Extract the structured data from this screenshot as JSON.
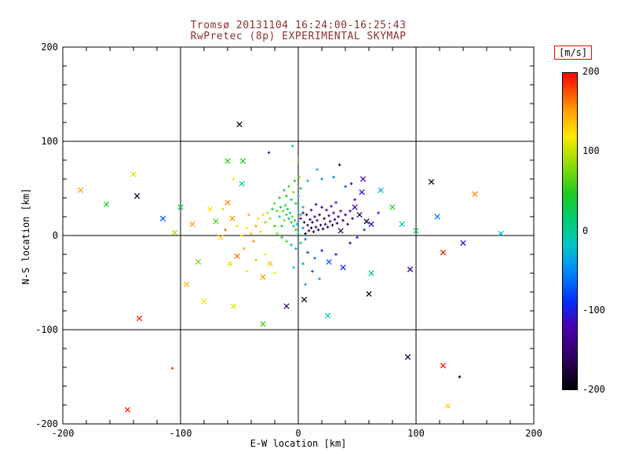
{
  "colors": {
    "title": "#8b3030",
    "axis": "#000000",
    "background": "#ffffff",
    "colorbar_box_border": "#ff0000"
  },
  "chart_data": {
    "type": "scatter",
    "title": "Tromsø 20131104 16:24:00-16:25:43",
    "subtitle": "RwPretec (8p) EXPERIMENTAL SKYMAP",
    "xlabel": "E-W location [km]",
    "ylabel": "N-S location [km]",
    "xlim": [
      -200,
      200
    ],
    "ylim": [
      -200,
      200
    ],
    "x_ticks": [
      -200,
      -100,
      0,
      100,
      200
    ],
    "y_ticks": [
      -200,
      -100,
      0,
      100,
      200
    ],
    "minor_tick_step": 20,
    "grid": true,
    "legend_position": "none",
    "colorbar": {
      "label": "[m/s]",
      "min": -200,
      "max": 200,
      "ticks": [
        200,
        100,
        0,
        -100,
        -200
      ],
      "stops": [
        {
          "t": 0.0,
          "c": "#000000"
        },
        {
          "t": 0.1,
          "c": "#2e0060"
        },
        {
          "t": 0.2,
          "c": "#4b00b0"
        },
        {
          "t": 0.28,
          "c": "#0030ff"
        },
        {
          "t": 0.38,
          "c": "#0090ff"
        },
        {
          "t": 0.46,
          "c": "#00c8c0"
        },
        {
          "t": 0.54,
          "c": "#00cc70"
        },
        {
          "t": 0.62,
          "c": "#20cc20"
        },
        {
          "t": 0.72,
          "c": "#9ade00"
        },
        {
          "t": 0.8,
          "c": "#ffe800"
        },
        {
          "t": 0.88,
          "c": "#ffa000"
        },
        {
          "t": 0.94,
          "c": "#ff5000"
        },
        {
          "t": 1.0,
          "c": "#ff0000"
        }
      ]
    },
    "points_format": [
      "x_km",
      "y_km",
      "velocity_mps",
      "marker(x=cross,d=dot)"
    ],
    "points": [
      [
        -140,
        65,
        110,
        "x"
      ],
      [
        -185,
        48,
        150,
        "x"
      ],
      [
        -163,
        33,
        40,
        "x"
      ],
      [
        -137,
        42,
        -185,
        "x"
      ],
      [
        -50,
        118,
        -190,
        "x"
      ],
      [
        -60,
        79,
        55,
        "x"
      ],
      [
        113,
        57,
        -195,
        "x"
      ],
      [
        150,
        44,
        160,
        "x"
      ],
      [
        172,
        2,
        -30,
        "x"
      ],
      [
        140,
        -8,
        -110,
        "x"
      ],
      [
        123,
        -18,
        195,
        "x"
      ],
      [
        95,
        -36,
        -150,
        "x"
      ],
      [
        -135,
        -88,
        190,
        "x"
      ],
      [
        123,
        -138,
        195,
        "x"
      ],
      [
        137,
        -150,
        -200,
        "d"
      ],
      [
        -145,
        -185,
        190,
        "x"
      ],
      [
        -107,
        -141,
        185,
        "d"
      ],
      [
        127,
        -181,
        130,
        "x"
      ],
      [
        93,
        -129,
        -170,
        "x"
      ],
      [
        60,
        -62,
        -190,
        "x"
      ],
      [
        70,
        48,
        -30,
        "x"
      ],
      [
        55,
        60,
        -120,
        "x"
      ],
      [
        118,
        20,
        -60,
        "x"
      ],
      [
        100,
        5,
        30,
        "x"
      ],
      [
        -95,
        -52,
        140,
        "x"
      ],
      [
        -80,
        -70,
        120,
        "x"
      ],
      [
        -55,
        -75,
        110,
        "x"
      ],
      [
        -30,
        -94,
        60,
        "x"
      ],
      [
        -10,
        -75,
        -150,
        "x"
      ],
      [
        5,
        -68,
        -180,
        "x"
      ],
      [
        25,
        -85,
        -20,
        "x"
      ],
      [
        -60,
        35,
        160,
        "x"
      ],
      [
        -75,
        28,
        120,
        "x"
      ],
      [
        -90,
        12,
        150,
        "x"
      ],
      [
        -105,
        3,
        90,
        "x"
      ],
      [
        -48,
        55,
        0,
        "x"
      ],
      [
        -47,
        79,
        50,
        "x"
      ],
      [
        -25,
        88,
        -100,
        "d"
      ],
      [
        0,
        80,
        70,
        "d"
      ],
      [
        -5,
        95,
        10,
        "d"
      ],
      [
        -55,
        60,
        130,
        "d"
      ],
      [
        35,
        75,
        -170,
        "d"
      ],
      [
        20,
        60,
        -50,
        "d"
      ],
      [
        45,
        55,
        -140,
        "d"
      ],
      [
        -70,
        15,
        60,
        "x"
      ],
      [
        -85,
        -28,
        80,
        "x"
      ],
      [
        62,
        -40,
        20,
        "x"
      ],
      [
        80,
        30,
        50,
        "x"
      ],
      [
        88,
        12,
        -10,
        "x"
      ],
      [
        -100,
        30,
        30,
        "x"
      ],
      [
        -115,
        18,
        -70,
        "x"
      ],
      [
        6,
        2,
        -180,
        "d"
      ],
      [
        9,
        5,
        -165,
        "d"
      ],
      [
        11,
        8,
        -190,
        "d"
      ],
      [
        13,
        4,
        -175,
        "d"
      ],
      [
        15,
        9,
        -155,
        "d"
      ],
      [
        17,
        6,
        -185,
        "d"
      ],
      [
        19,
        11,
        -160,
        "d"
      ],
      [
        21,
        7,
        -195,
        "d"
      ],
      [
        23,
        12,
        -150,
        "d"
      ],
      [
        25,
        9,
        -170,
        "d"
      ],
      [
        27,
        15,
        -140,
        "d"
      ],
      [
        29,
        11,
        -180,
        "d"
      ],
      [
        31,
        17,
        -155,
        "d"
      ],
      [
        33,
        13,
        -165,
        "d"
      ],
      [
        16,
        16,
        -135,
        "d"
      ],
      [
        12,
        14,
        -175,
        "d"
      ],
      [
        8,
        11,
        -160,
        "d"
      ],
      [
        10,
        17,
        -145,
        "d"
      ],
      [
        14,
        20,
        -130,
        "d"
      ],
      [
        18,
        22,
        -150,
        "d"
      ],
      [
        22,
        18,
        -170,
        "d"
      ],
      [
        26,
        21,
        -140,
        "d"
      ],
      [
        30,
        24,
        -125,
        "d"
      ],
      [
        34,
        20,
        -155,
        "d"
      ],
      [
        38,
        16,
        -175,
        "d"
      ],
      [
        36,
        26,
        -135,
        "d"
      ],
      [
        24,
        27,
        -120,
        "d"
      ],
      [
        20,
        30,
        -145,
        "d"
      ],
      [
        28,
        31,
        -130,
        "d"
      ],
      [
        32,
        35,
        -115,
        "d"
      ],
      [
        15,
        33,
        -125,
        "d"
      ],
      [
        11,
        27,
        -140,
        "d"
      ],
      [
        7,
        22,
        -155,
        "d"
      ],
      [
        5,
        14,
        -170,
        "d"
      ],
      [
        4,
        24,
        -135,
        "d"
      ],
      [
        2,
        18,
        -120,
        "d"
      ],
      [
        40,
        22,
        -150,
        "d"
      ],
      [
        44,
        26,
        -130,
        "d"
      ],
      [
        42,
        12,
        -165,
        "d"
      ],
      [
        46,
        18,
        -145,
        "d"
      ],
      [
        36,
        5,
        -160,
        "x"
      ],
      [
        48,
        30,
        -140,
        "x"
      ],
      [
        52,
        22,
        -170,
        "x"
      ],
      [
        58,
        15,
        -190,
        "x"
      ],
      [
        0,
        2,
        10,
        "d"
      ],
      [
        -2,
        6,
        30,
        "d"
      ],
      [
        -4,
        10,
        -15,
        "d"
      ],
      [
        -6,
        14,
        45,
        "d"
      ],
      [
        -8,
        18,
        5,
        "d"
      ],
      [
        -10,
        22,
        60,
        "d"
      ],
      [
        -1,
        12,
        -25,
        "d"
      ],
      [
        -3,
        16,
        20,
        "d"
      ],
      [
        -5,
        20,
        75,
        "d"
      ],
      [
        -7,
        24,
        -5,
        "d"
      ],
      [
        -9,
        28,
        35,
        "d"
      ],
      [
        -11,
        32,
        55,
        "d"
      ],
      [
        0,
        26,
        -20,
        "d"
      ],
      [
        2,
        22,
        15,
        "d"
      ],
      [
        4,
        30,
        -35,
        "d"
      ],
      [
        -13,
        26,
        70,
        "d"
      ],
      [
        -15,
        30,
        25,
        "d"
      ],
      [
        -12,
        16,
        85,
        "d"
      ],
      [
        -14,
        10,
        40,
        "d"
      ],
      [
        -16,
        20,
        -10,
        "d"
      ],
      [
        -18,
        26,
        65,
        "d"
      ],
      [
        -2,
        34,
        30,
        "d"
      ],
      [
        -6,
        38,
        0,
        "d"
      ],
      [
        -10,
        42,
        50,
        "d"
      ],
      [
        -4,
        46,
        80,
        "d"
      ],
      [
        0,
        42,
        -30,
        "d"
      ],
      [
        2,
        50,
        20,
        "d"
      ],
      [
        -8,
        52,
        60,
        "d"
      ],
      [
        -3,
        58,
        35,
        "d"
      ],
      [
        1,
        62,
        90,
        "d"
      ],
      [
        -12,
        48,
        10,
        "d"
      ],
      [
        -16,
        40,
        45,
        "d"
      ],
      [
        -20,
        34,
        70,
        "d"
      ],
      [
        -22,
        28,
        25,
        "d"
      ],
      [
        -24,
        18,
        95,
        "d"
      ],
      [
        -20,
        10,
        55,
        "d"
      ],
      [
        -18,
        2,
        80,
        "d"
      ],
      [
        -14,
        -2,
        30,
        "d"
      ],
      [
        -10,
        -6,
        65,
        "d"
      ],
      [
        -6,
        -10,
        15,
        "d"
      ],
      [
        -2,
        -14,
        -40,
        "d"
      ],
      [
        2,
        -8,
        -10,
        "d"
      ],
      [
        6,
        -4,
        -55,
        "d"
      ],
      [
        4,
        8,
        -45,
        "d"
      ],
      [
        -26,
        24,
        100,
        "d"
      ],
      [
        -28,
        14,
        85,
        "d"
      ],
      [
        -30,
        22,
        110,
        "d"
      ],
      [
        -32,
        4,
        130,
        "d"
      ],
      [
        -36,
        10,
        150,
        "d"
      ],
      [
        -40,
        2,
        140,
        "d"
      ],
      [
        -44,
        8,
        120,
        "d"
      ],
      [
        -38,
        -6,
        160,
        "d"
      ],
      [
        -48,
        0,
        135,
        "d"
      ],
      [
        -52,
        10,
        115,
        "d"
      ],
      [
        -34,
        18,
        125,
        "d"
      ],
      [
        -42,
        22,
        145,
        "d"
      ],
      [
        -56,
        18,
        155,
        "x"
      ],
      [
        -62,
        6,
        170,
        "d"
      ],
      [
        -66,
        -2,
        130,
        "x"
      ],
      [
        -46,
        -14,
        150,
        "d"
      ],
      [
        -52,
        -22,
        165,
        "x"
      ],
      [
        -36,
        -26,
        140,
        "d"
      ],
      [
        -28,
        -20,
        120,
        "d"
      ],
      [
        -24,
        -30,
        135,
        "x"
      ],
      [
        -58,
        -30,
        110,
        "x"
      ],
      [
        -44,
        -38,
        125,
        "d"
      ],
      [
        -30,
        -44,
        150,
        "x"
      ],
      [
        -20,
        -40,
        115,
        "d"
      ],
      [
        -64,
        28,
        105,
        "d"
      ],
      [
        8,
        -18,
        -90,
        "d"
      ],
      [
        14,
        -24,
        -60,
        "d"
      ],
      [
        20,
        -16,
        -110,
        "d"
      ],
      [
        26,
        -28,
        -70,
        "x"
      ],
      [
        4,
        -30,
        -40,
        "d"
      ],
      [
        -4,
        -34,
        -20,
        "d"
      ],
      [
        12,
        -38,
        -80,
        "d"
      ],
      [
        32,
        -20,
        -120,
        "d"
      ],
      [
        38,
        -34,
        -95,
        "x"
      ],
      [
        18,
        -46,
        -50,
        "d"
      ],
      [
        6,
        -52,
        -30,
        "d"
      ],
      [
        44,
        -8,
        -130,
        "d"
      ],
      [
        50,
        -2,
        -105,
        "d"
      ],
      [
        56,
        6,
        -85,
        "d"
      ],
      [
        62,
        12,
        -115,
        "x"
      ],
      [
        68,
        24,
        -95,
        "d"
      ],
      [
        48,
        38,
        -125,
        "d"
      ],
      [
        54,
        46,
        -105,
        "x"
      ],
      [
        40,
        52,
        -75,
        "d"
      ],
      [
        30,
        62,
        -55,
        "d"
      ],
      [
        16,
        70,
        -35,
        "d"
      ],
      [
        8,
        58,
        -15,
        "d"
      ]
    ]
  }
}
